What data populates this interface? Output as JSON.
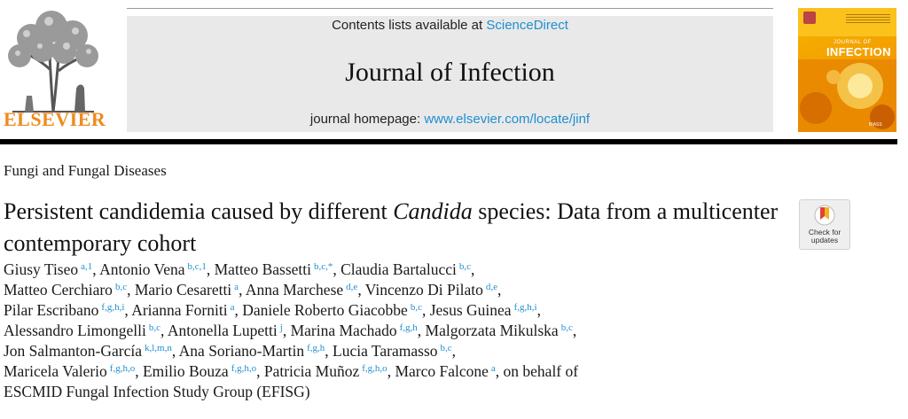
{
  "header": {
    "contents_prefix": "Contents lists available at ",
    "contents_link": "ScienceDirect",
    "journal_title": "Journal of Infection",
    "homepage_prefix": "journal homepage: ",
    "homepage_link": "www.elsevier.com/locate/jinf"
  },
  "publisher": {
    "name": "ELSEVIER",
    "color": "#f08a1e"
  },
  "cover": {
    "journal_small": "JOURNAL OF",
    "journal_big": "INFECTION",
    "footer": "BIASS"
  },
  "article": {
    "section": "Fungi and Fungal Diseases",
    "title_part1": "Persistent candidemia caused by different ",
    "title_italic": "Candida",
    "title_part2": " species: Data from a multicenter contemporary cohort"
  },
  "badge": {
    "line1": "Check for",
    "line2": "updates"
  },
  "authors": [
    [
      {
        "name": "Giusy Tiseo",
        "aff": "a,1",
        "sep": ","
      },
      {
        "name": "Antonio Vena",
        "aff": "b,c,1",
        "sep": ","
      },
      {
        "name": "Matteo Bassetti",
        "aff": "b,c,*",
        "sep": ","
      },
      {
        "name": "Claudia Bartalucci",
        "aff": "b,c",
        "sep": ","
      }
    ],
    [
      {
        "name": "Matteo Cerchiaro",
        "aff": "b,c",
        "sep": ","
      },
      {
        "name": "Mario Cesaretti",
        "aff": "a",
        "sep": ","
      },
      {
        "name": "Anna Marchese",
        "aff": "d,e",
        "sep": ","
      },
      {
        "name": "Vincenzo Di Pilato",
        "aff": "d,e",
        "sep": ","
      }
    ],
    [
      {
        "name": "Pilar Escribano",
        "aff": "f,g,h,i",
        "sep": ","
      },
      {
        "name": "Arianna Forniti",
        "aff": "a",
        "sep": ","
      },
      {
        "name": "Daniele Roberto Giacobbe",
        "aff": "b,c",
        "sep": ","
      },
      {
        "name": "Jesus Guinea",
        "aff": "f,g,h,i",
        "sep": ","
      }
    ],
    [
      {
        "name": "Alessandro Limongelli",
        "aff": "b,c",
        "sep": ","
      },
      {
        "name": "Antonella Lupetti",
        "aff": "j",
        "sep": ","
      },
      {
        "name": "Marina Machado",
        "aff": "f,g,h",
        "sep": ","
      },
      {
        "name": "Malgorzata Mikulska",
        "aff": "b,c",
        "sep": ","
      }
    ],
    [
      {
        "name": "Jon Salmanton-García",
        "aff": "k,l,m,n",
        "sep": ","
      },
      {
        "name": "Ana Soriano-Martin",
        "aff": "f,g,h",
        "sep": ","
      },
      {
        "name": "Lucia Taramasso",
        "aff": "b,c",
        "sep": ","
      }
    ],
    [
      {
        "name": "Maricela Valerio",
        "aff": "f,g,h,o",
        "sep": ","
      },
      {
        "name": "Emilio Bouza",
        "aff": "f,g,h,o",
        "sep": ","
      },
      {
        "name": "Patricia Muñoz",
        "aff": "f,g,h,o",
        "sep": ","
      },
      {
        "name": "Marco Falcone",
        "aff": "a",
        "sep": ", on behalf of"
      }
    ],
    [
      {
        "name": "ESCMID Fungal Infection Study Group (EFISG)",
        "aff": "",
        "sep": ""
      }
    ]
  ]
}
